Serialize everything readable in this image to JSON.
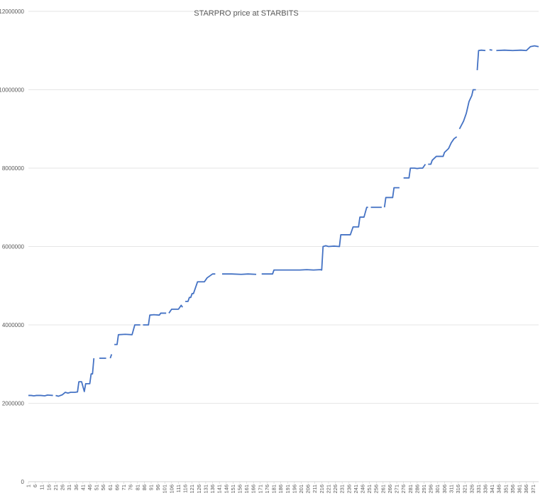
{
  "chart_data": {
    "type": "line",
    "title": "STARPRO price at STARBITS",
    "xlabel": "",
    "ylabel": "",
    "ylim": [
      0,
      12000000
    ],
    "yticks": [
      0,
      2000000,
      4000000,
      6000000,
      8000000,
      10000000,
      12000000
    ],
    "ytick_labels": [
      "0",
      "2000000",
      "4000000",
      "6000000",
      "8000000",
      "10000000",
      "12000000"
    ],
    "x_range": [
      1,
      375
    ],
    "xtick_labels": [
      "1",
      "6",
      "11",
      "16",
      "21",
      "26",
      "31",
      "36",
      "41",
      "46",
      "51",
      "56",
      "61",
      "66",
      "71",
      "76",
      "81",
      "86",
      "91",
      "96",
      "101",
      "106",
      "111",
      "116",
      "121",
      "126",
      "131",
      "136",
      "141",
      "146",
      "151",
      "156",
      "161",
      "166",
      "171",
      "176",
      "181",
      "186",
      "191",
      "196",
      "201",
      "206",
      "211",
      "216",
      "221",
      "226",
      "231",
      "236",
      "241",
      "246",
      "251",
      "256",
      "261",
      "266",
      "271",
      "276",
      "281",
      "286",
      "291",
      "296",
      "301",
      "306",
      "311",
      "316",
      "321",
      "326",
      "331",
      "336",
      "341",
      "346",
      "351",
      "356",
      "361",
      "366",
      "371"
    ],
    "grid": true,
    "legend": "none",
    "series_color": "#4472C4",
    "series": [
      {
        "segments": [
          [
            [
              1,
              2200000
            ],
            [
              3,
              2200000
            ],
            [
              5,
              2190000
            ],
            [
              7,
              2200000
            ],
            [
              10,
              2200000
            ],
            [
              13,
              2190000
            ],
            [
              15,
              2210000
            ],
            [
              19,
              2200000
            ]
          ],
          [
            [
              21,
              2200000
            ],
            [
              23,
              2180000
            ],
            [
              26,
              2220000
            ],
            [
              28,
              2280000
            ],
            [
              30,
              2260000
            ],
            [
              32,
              2280000
            ],
            [
              35,
              2280000
            ],
            [
              37,
              2290000
            ],
            [
              38,
              2550000
            ],
            [
              40,
              2550000
            ],
            [
              42,
              2300000
            ],
            [
              43,
              2500000
            ],
            [
              46,
              2500000
            ],
            [
              47,
              2750000
            ],
            [
              48,
              2750000
            ],
            [
              49,
              3150000
            ]
          ],
          [
            [
              53,
              3150000
            ],
            [
              58,
              3150000
            ]
          ],
          [
            [
              61,
              3150000
            ],
            [
              62,
              3250000
            ]
          ],
          [
            [
              64,
              3500000
            ],
            [
              66,
              3500000
            ],
            [
              67,
              3750000
            ],
            [
              72,
              3760000
            ],
            [
              77,
              3750000
            ],
            [
              79,
              4000000
            ],
            [
              83,
              4000000
            ]
          ],
          [
            [
              85,
              4000000
            ],
            [
              89,
              4000000
            ],
            [
              90,
              4250000
            ],
            [
              93,
              4260000
            ],
            [
              97,
              4250000
            ],
            [
              98,
              4300000
            ],
            [
              102,
              4300000
            ]
          ],
          [
            [
              104,
              4300000
            ],
            [
              106,
              4400000
            ],
            [
              111,
              4400000
            ],
            [
              113,
              4500000
            ],
            [
              114,
              4450000
            ]
          ],
          [
            [
              116,
              4600000
            ],
            [
              118,
              4600000
            ],
            [
              119,
              4700000
            ],
            [
              120,
              4700000
            ],
            [
              121,
              4800000
            ],
            [
              122,
              4800000
            ],
            [
              125,
              5100000
            ],
            [
              130,
              5100000
            ],
            [
              132,
              5200000
            ],
            [
              134,
              5250000
            ],
            [
              136,
              5300000
            ],
            [
              138,
              5300000
            ]
          ],
          [
            [
              143,
              5300000
            ],
            [
              150,
              5300000
            ],
            [
              157,
              5290000
            ],
            [
              162,
              5300000
            ],
            [
              168,
              5290000
            ]
          ],
          [
            [
              172,
              5300000
            ],
            [
              178,
              5300000
            ],
            [
              180,
              5300000
            ],
            [
              181,
              5400000
            ],
            [
              190,
              5400000
            ],
            [
              200,
              5400000
            ],
            [
              205,
              5410000
            ],
            [
              210,
              5400000
            ],
            [
              215,
              5410000
            ],
            [
              216,
              5400000
            ],
            [
              217,
              6000000
            ],
            [
              219,
              6020000
            ],
            [
              221,
              6000000
            ],
            [
              225,
              6010000
            ],
            [
              229,
              6000000
            ],
            [
              230,
              6300000
            ],
            [
              237,
              6300000
            ],
            [
              239,
              6500000
            ],
            [
              243,
              6500000
            ],
            [
              244,
              6750000
            ],
            [
              247,
              6750000
            ],
            [
              249,
              7000000
            ],
            [
              250,
              7000000
            ]
          ],
          [
            [
              252,
              7000000
            ],
            [
              260,
              7000000
            ]
          ],
          [
            [
              262,
              7000000
            ],
            [
              263,
              7250000
            ],
            [
              268,
              7250000
            ],
            [
              269,
              7500000
            ],
            [
              273,
              7500000
            ]
          ],
          [
            [
              276,
              7750000
            ],
            [
              280,
              7750000
            ],
            [
              281,
              8000000
            ],
            [
              284,
              8000000
            ],
            [
              286,
              7990000
            ],
            [
              288,
              8000000
            ],
            [
              290,
              8000000
            ],
            [
              292,
              8100000
            ]
          ],
          [
            [
              294,
              8100000
            ],
            [
              296,
              8100000
            ],
            [
              297,
              8200000
            ],
            [
              300,
              8300000
            ],
            [
              305,
              8300000
            ],
            [
              306,
              8400000
            ],
            [
              309,
              8500000
            ],
            [
              311,
              8650000
            ],
            [
              313,
              8750000
            ],
            [
              315,
              8800000
            ]
          ],
          [
            [
              317,
              9000000
            ],
            [
              320,
              9200000
            ],
            [
              322,
              9400000
            ],
            [
              324,
              9700000
            ],
            [
              326,
              9850000
            ],
            [
              327,
              10000000
            ],
            [
              328,
              10000000
            ],
            [
              329,
              10000000
            ]
          ],
          [
            [
              330,
              10500000
            ],
            [
              331,
              11000000
            ],
            [
              333,
              11010000
            ],
            [
              336,
              11000000
            ]
          ],
          [
            [
              339,
              11020000
            ],
            [
              341,
              11010000
            ]
          ],
          [
            [
              344,
              11000000
            ],
            [
              350,
              11010000
            ],
            [
              356,
              11000000
            ],
            [
              362,
              11010000
            ],
            [
              366,
              11000000
            ],
            [
              369,
              11100000
            ],
            [
              372,
              11120000
            ],
            [
              375,
              11100000
            ]
          ]
        ]
      }
    ]
  }
}
